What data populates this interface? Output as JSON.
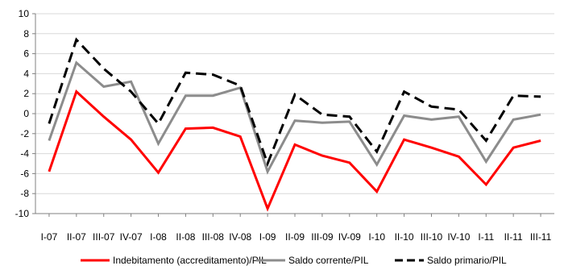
{
  "chart_data": {
    "type": "line",
    "title": "",
    "xlabel": "",
    "ylabel": "",
    "categories": [
      "I-07",
      "II-07",
      "III-07",
      "IV-07",
      "I-08",
      "II-08",
      "III-08",
      "IV-08",
      "I-09",
      "II-09",
      "III-09",
      "IV-09",
      "I-10",
      "II-10",
      "III-10",
      "IV-10",
      "I-11",
      "II-11",
      "III-11"
    ],
    "ylim": [
      -10,
      10
    ],
    "yticks": [
      -10,
      -8,
      -6,
      -4,
      -2,
      0,
      2,
      4,
      6,
      8,
      10
    ],
    "ytick_labels": [
      "-10",
      "-8",
      "-6",
      "-4",
      "-2",
      "0",
      "2",
      "4",
      "6",
      "8",
      "10"
    ],
    "grid": "horizontal",
    "legend_position": "bottom",
    "series": [
      {
        "name": "Indebitamento (accreditamento)/PIL",
        "color": "#ff0000",
        "style": "solid",
        "values": [
          -5.8,
          2.2,
          -0.3,
          -2.6,
          -5.9,
          -1.5,
          -1.4,
          -2.3,
          -9.5,
          -3.1,
          -4.2,
          -4.9,
          -7.8,
          -2.6,
          -3.4,
          -4.3,
          -7.1,
          -3.4,
          -2.7
        ]
      },
      {
        "name": "Saldo corrente/PIL",
        "color": "#8c8c8c",
        "style": "solid",
        "values": [
          -2.7,
          5.1,
          2.7,
          3.2,
          -3.0,
          1.8,
          1.8,
          2.6,
          -5.8,
          -0.7,
          -0.9,
          -0.8,
          -5.1,
          -0.2,
          -0.6,
          -0.3,
          -4.8,
          -0.6,
          -0.1
        ]
      },
      {
        "name": "Saldo primario/PIL",
        "color": "#000000",
        "style": "dashed",
        "values": [
          -1.0,
          7.4,
          4.5,
          2.2,
          -1.0,
          4.1,
          3.9,
          2.8,
          -5.0,
          1.9,
          -0.1,
          -0.3,
          -3.8,
          2.2,
          0.7,
          0.4,
          -2.7,
          1.8,
          1.7
        ]
      }
    ]
  }
}
